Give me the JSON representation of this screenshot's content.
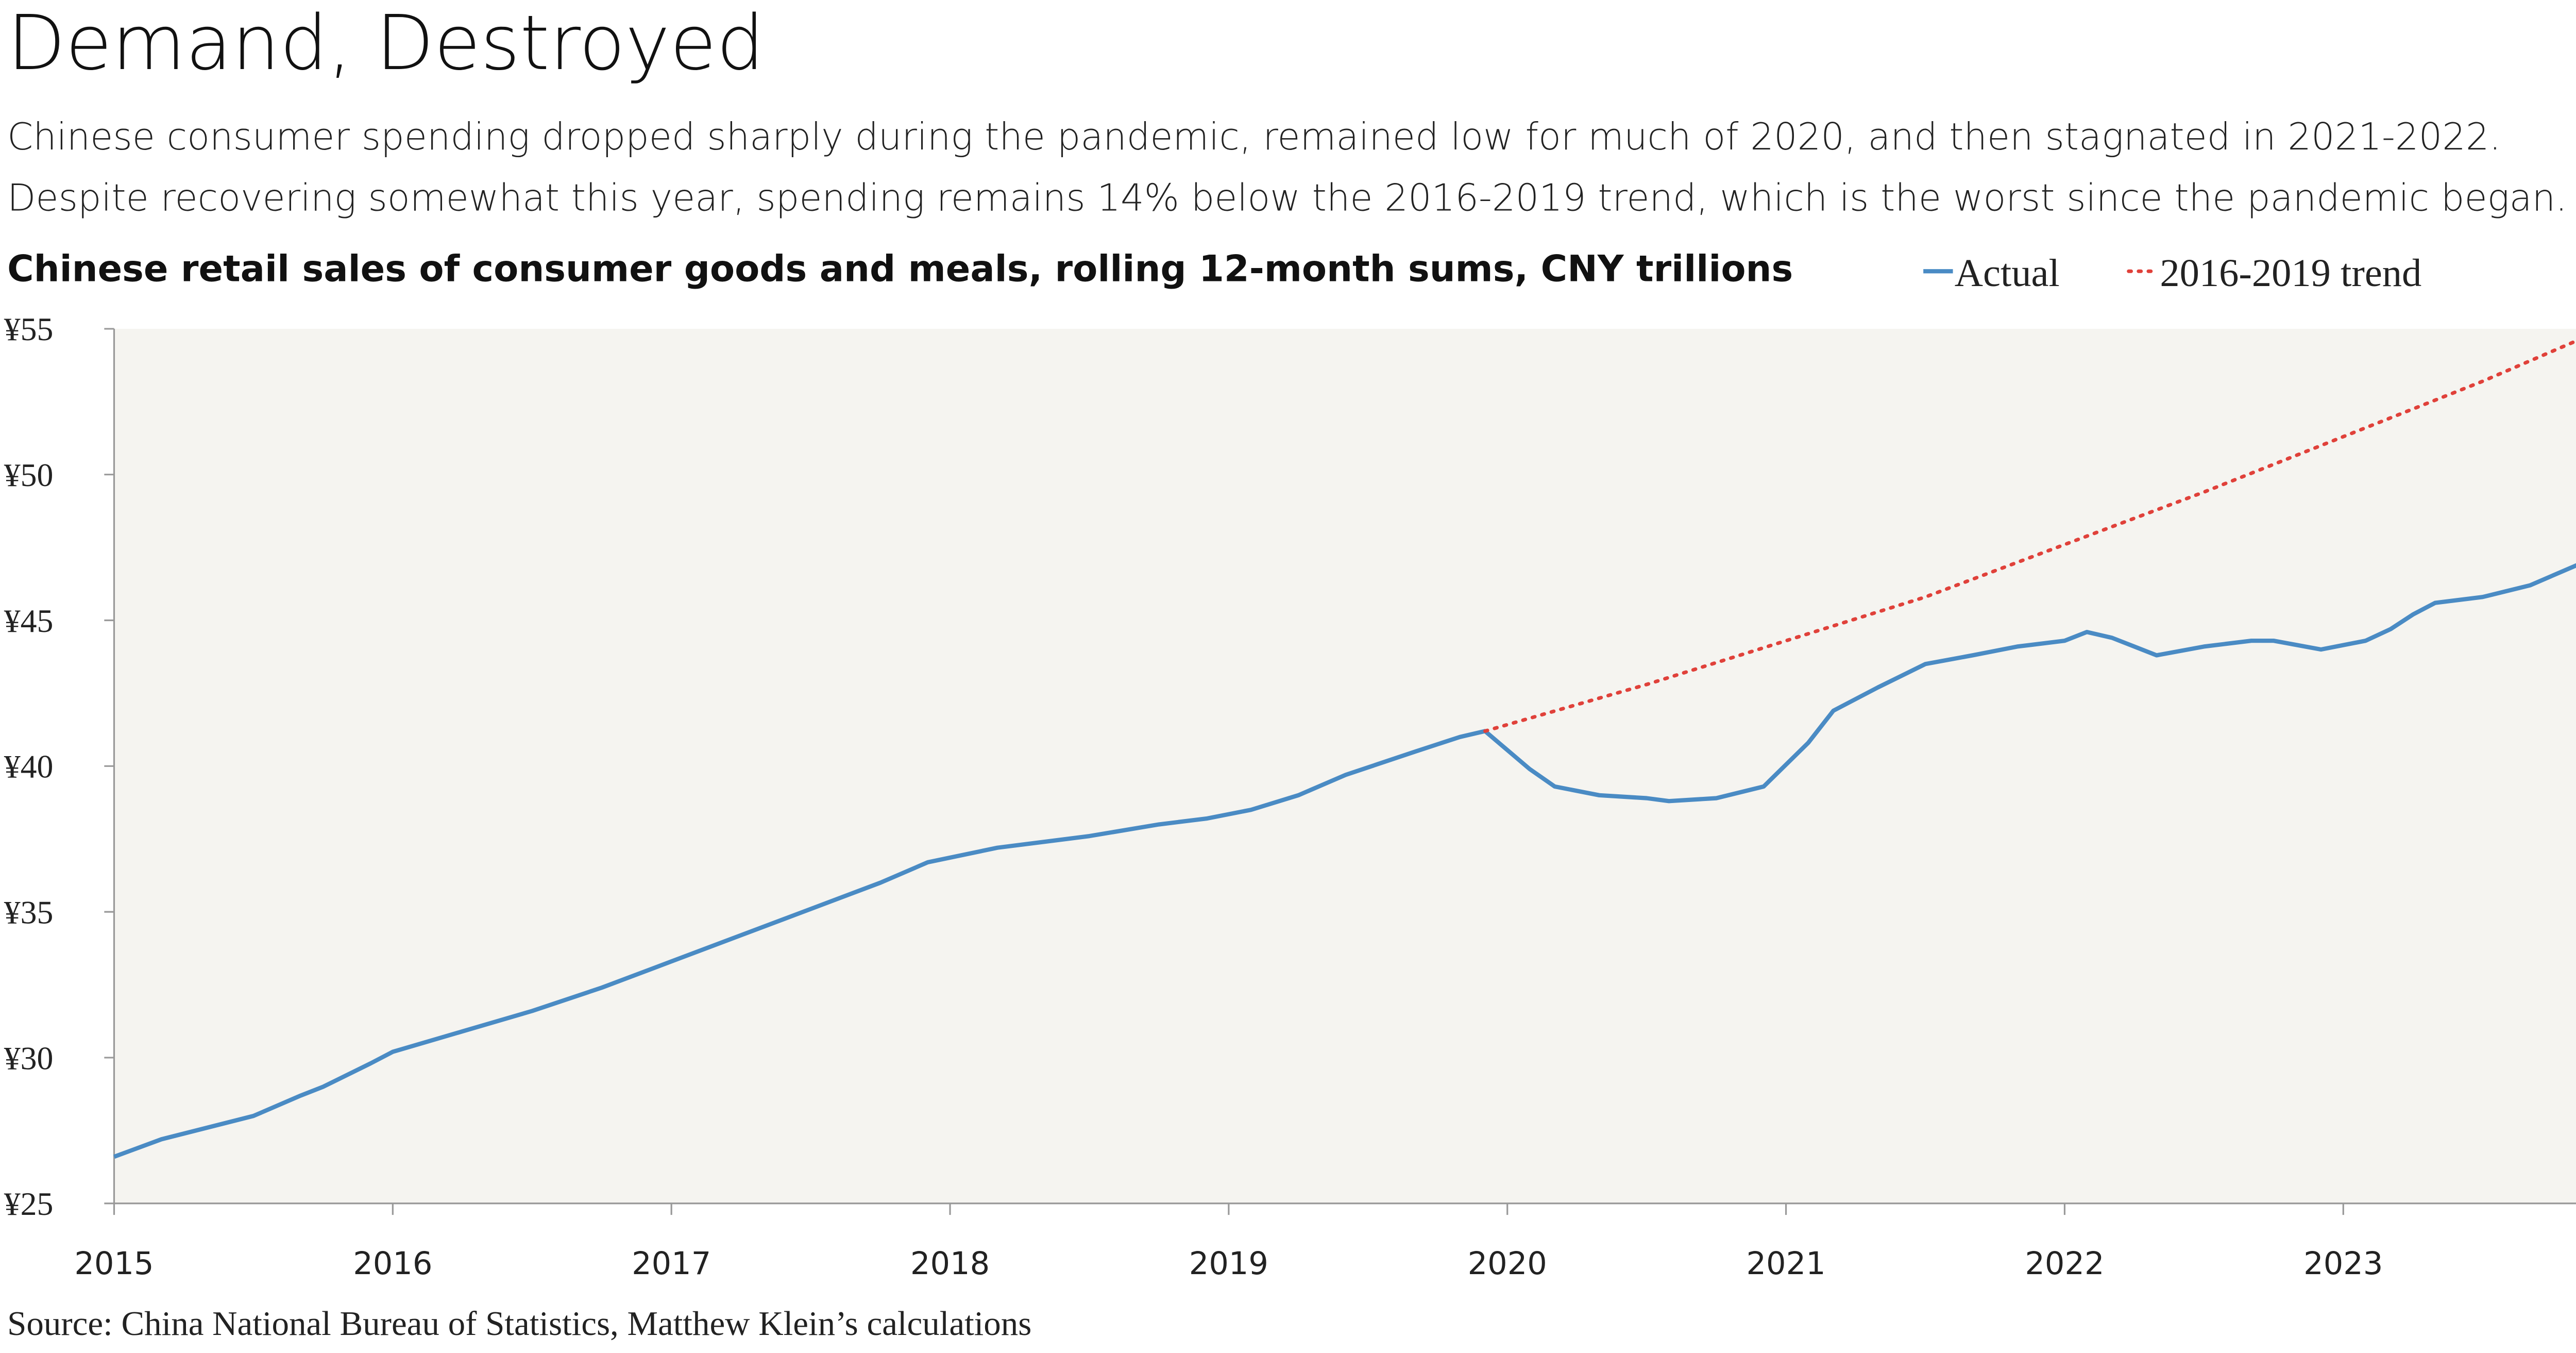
{
  "chart_data": {
    "type": "line",
    "title": "Demand, Destroyed",
    "subtitle": "Chinese consumer spending dropped sharply during the pandemic, remained low for much of 2020, and then stagnated in 2021-2022. Despite recovering somewhat this year, spending remains 14% below the 2016-2019 trend, which is the worst since the pandemic began.",
    "y_axis_title": "Chinese retail sales of consumer goods and meals, rolling 12-month sums, CNY trillions",
    "source": "Source: China National Bureau of Statistics, Matthew Klein’s calculations",
    "xlim": [
      2015,
      2023.84
    ],
    "xticks": [
      2015,
      2016,
      2017,
      2018,
      2019,
      2020,
      2021,
      2022,
      2023
    ],
    "ylim": [
      25,
      55
    ],
    "yticks": [
      {
        "value": 25,
        "label": "¥25"
      },
      {
        "value": 30,
        "label": "¥30"
      },
      {
        "value": 35,
        "label": "¥35"
      },
      {
        "value": 40,
        "label": "¥40"
      },
      {
        "value": 45,
        "label": "¥45"
      },
      {
        "value": 50,
        "label": "¥50"
      },
      {
        "value": 55,
        "label": "¥55"
      }
    ],
    "grid": false,
    "plot_background": "#f5f4f0",
    "legend_position": "top-right",
    "series": [
      {
        "name": "Actual",
        "color": "#4a8bc4",
        "style": "solid",
        "x": [
          2015.0,
          2015.17,
          2015.5,
          2015.67,
          2015.75,
          2015.92,
          2016.0,
          2016.25,
          2016.5,
          2016.75,
          2017.0,
          2017.25,
          2017.5,
          2017.75,
          2017.92,
          2018.17,
          2018.5,
          2018.75,
          2018.92,
          2019.08,
          2019.25,
          2019.42,
          2019.67,
          2019.83,
          2019.92,
          2020.08,
          2020.17,
          2020.33,
          2020.5,
          2020.58,
          2020.75,
          2020.92,
          2021.08,
          2021.17,
          2021.33,
          2021.5,
          2021.67,
          2021.83,
          2022.0,
          2022.08,
          2022.17,
          2022.25,
          2022.33,
          2022.5,
          2022.67,
          2022.75,
          2022.92,
          2023.08,
          2023.17,
          2023.25,
          2023.33,
          2023.5,
          2023.67,
          2023.84
        ],
        "values": [
          26.6,
          27.2,
          28.0,
          28.7,
          29.0,
          29.8,
          30.2,
          30.9,
          31.6,
          32.4,
          33.3,
          34.2,
          35.1,
          36.0,
          36.7,
          37.2,
          37.6,
          38.0,
          38.2,
          38.5,
          39.0,
          39.7,
          40.5,
          41.0,
          41.2,
          39.9,
          39.3,
          39.0,
          38.9,
          38.8,
          38.9,
          39.3,
          40.8,
          41.9,
          42.7,
          43.5,
          43.8,
          44.1,
          44.3,
          44.6,
          44.4,
          44.1,
          43.8,
          44.1,
          44.3,
          44.3,
          44.0,
          44.3,
          44.7,
          45.2,
          45.6,
          45.8,
          46.2,
          46.9
        ]
      },
      {
        "name": "2016-2019 trend",
        "color": "#e0413a",
        "style": "dotted",
        "x": [
          2019.92,
          2020.5,
          2021.0,
          2021.5,
          2022.0,
          2022.5,
          2023.0,
          2023.5,
          2023.84
        ],
        "values": [
          41.2,
          42.8,
          44.3,
          45.8,
          47.6,
          49.4,
          51.3,
          53.2,
          54.6
        ]
      }
    ]
  }
}
